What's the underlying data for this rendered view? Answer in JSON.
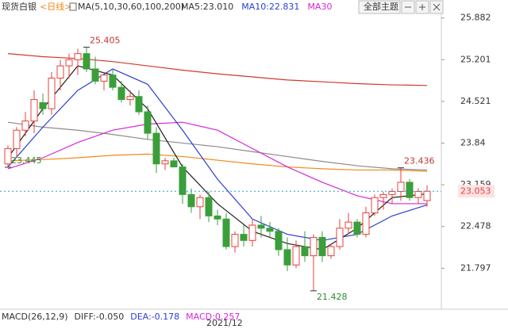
{
  "chart_data": {
    "type": "candlestick",
    "title": "现货白银",
    "period": "<日线>",
    "indicator": "MA(5,10,30,60,100,200)",
    "indicator_labels": [
      {
        "text": "MA5:23.010",
        "color": "#333333"
      },
      {
        "text": "MA10:22.831",
        "color": "#2b3fd1"
      },
      {
        "text": "MA30",
        "color": "#d627d6"
      }
    ],
    "buttons": [
      "全部主题"
    ],
    "x_label": "2021/12",
    "macd_labels": [
      {
        "text": "MACD(26,12,9)",
        "color": "#333333"
      },
      {
        "text": "DIFF:-0.050",
        "color": "#333333"
      },
      {
        "text": "DEA:-0.178",
        "color": "#2b3fd1"
      },
      {
        "text": "MACD:0.257",
        "color": "#d627d6"
      }
    ],
    "ylim": [
      21.128,
      26.02
    ],
    "yticks": [
      25.882,
      25.201,
      24.521,
      23.84,
      23.159,
      22.478,
      21.797
    ],
    "up_color": "#e8413c",
    "down_color": "#3a9f3a",
    "candles": {
      "open": [
        23.5,
        23.75,
        24.05,
        24.2,
        24.5,
        24.4,
        24.9,
        25.1,
        25.2,
        25.3,
        25.05,
        24.85,
        24.95,
        24.75,
        24.55,
        24.6,
        24.35,
        24.0,
        23.5,
        23.55,
        23.45,
        23.0,
        22.8,
        22.95,
        22.65,
        22.6,
        22.15,
        22.35,
        22.25,
        22.5,
        22.45,
        22.4,
        22.1,
        21.85,
        22.15,
        22.0,
        22.3,
        22.0,
        22.15,
        22.45,
        22.55,
        22.35,
        22.7,
        22.95,
        23.0,
        23.05,
        23.2,
        22.95,
        22.9
      ],
      "high": [
        23.8,
        24.1,
        24.35,
        24.7,
        24.65,
        25.0,
        25.2,
        25.3,
        25.38,
        25.405,
        25.25,
        25.0,
        25.05,
        24.85,
        24.7,
        24.7,
        24.45,
        24.1,
        23.6,
        23.6,
        23.5,
        23.1,
        23.0,
        23.05,
        22.75,
        22.7,
        22.4,
        22.5,
        22.6,
        22.65,
        22.55,
        22.45,
        22.3,
        22.25,
        22.4,
        22.35,
        22.4,
        22.2,
        22.6,
        22.7,
        22.6,
        22.8,
        23.0,
        23.05,
        23.1,
        23.436,
        23.25,
        23.1,
        23.15
      ],
      "low": [
        23.445,
        23.6,
        23.95,
        24.0,
        24.3,
        24.3,
        24.7,
        24.9,
        24.95,
        25.0,
        24.8,
        24.7,
        24.7,
        24.5,
        24.45,
        24.3,
        23.9,
        23.35,
        23.4,
        23.45,
        22.85,
        22.7,
        22.6,
        22.55,
        22.5,
        22.1,
        22.05,
        22.15,
        22.15,
        22.3,
        22.3,
        22.0,
        21.75,
        21.8,
        21.9,
        21.428,
        21.9,
        21.95,
        22.1,
        22.35,
        22.3,
        22.3,
        22.65,
        22.75,
        22.85,
        22.9,
        22.9,
        22.85,
        22.8
      ],
      "close": [
        23.75,
        24.05,
        24.2,
        24.55,
        24.4,
        24.9,
        25.1,
        25.2,
        25.3,
        25.05,
        24.85,
        24.95,
        24.75,
        24.55,
        24.6,
        24.35,
        24.0,
        23.5,
        23.55,
        23.45,
        23.0,
        22.8,
        22.95,
        22.65,
        22.6,
        22.15,
        22.35,
        22.25,
        22.5,
        22.45,
        22.4,
        22.1,
        21.85,
        22.15,
        22.0,
        22.3,
        22.0,
        22.15,
        22.45,
        22.55,
        22.35,
        22.7,
        22.95,
        23.0,
        23.05,
        23.2,
        22.95,
        23.05,
        23.053
      ]
    },
    "series": [
      {
        "name": "MA200",
        "color": "#d03a2e",
        "x": [
          0,
          4,
          8,
          12,
          16,
          20,
          24,
          28,
          32,
          36,
          40,
          44,
          48
        ],
        "values": [
          25.3,
          25.25,
          25.22,
          25.17,
          25.1,
          25.03,
          24.97,
          24.92,
          24.87,
          24.84,
          24.81,
          24.79,
          24.78
        ]
      },
      {
        "name": "MA100",
        "color": "#8c8c8c",
        "x": [
          0,
          4,
          8,
          12,
          16,
          20,
          24,
          28,
          32,
          36,
          40,
          44,
          48
        ],
        "values": [
          24.18,
          24.1,
          24.05,
          23.98,
          23.9,
          23.84,
          23.78,
          23.7,
          23.62,
          23.54,
          23.47,
          23.42,
          23.4
        ]
      },
      {
        "name": "MA60",
        "color": "#f08a1c",
        "x": [
          0,
          4,
          8,
          12,
          16,
          20,
          24,
          28,
          32,
          36,
          40,
          44,
          48
        ],
        "values": [
          23.55,
          23.57,
          23.6,
          23.64,
          23.66,
          23.62,
          23.56,
          23.5,
          23.45,
          23.42,
          23.4,
          23.4,
          23.38
        ]
      },
      {
        "name": "MA30",
        "color": "#d627d6",
        "x": [
          0,
          4,
          8,
          12,
          16,
          20,
          24,
          28,
          32,
          36,
          40,
          44,
          48
        ],
        "values": [
          23.42,
          23.6,
          23.85,
          24.05,
          24.15,
          24.18,
          24.05,
          23.75,
          23.45,
          23.2,
          22.98,
          22.85,
          22.85
        ]
      },
      {
        "name": "MA10",
        "color": "#2b3fd1",
        "x": [
          0,
          4,
          8,
          12,
          16,
          20,
          24,
          28,
          32,
          36,
          40,
          44,
          48
        ],
        "values": [
          23.45,
          24.1,
          24.7,
          25.05,
          24.8,
          24.05,
          23.25,
          22.6,
          22.35,
          22.25,
          22.35,
          22.65,
          22.831
        ]
      },
      {
        "name": "MA5",
        "color": "#222222",
        "x": [
          0,
          4,
          8,
          12,
          16,
          20,
          24,
          28,
          32,
          36,
          40,
          44,
          48
        ],
        "values": [
          23.6,
          24.4,
          25.1,
          24.95,
          24.4,
          23.45,
          22.85,
          22.4,
          22.2,
          22.1,
          22.45,
          22.95,
          23.01
        ]
      }
    ],
    "annotations": [
      {
        "index": 9,
        "value": 25.405,
        "label": "25.405",
        "color": "#c0392b"
      },
      {
        "index": 0,
        "value": 23.445,
        "label": "23.445",
        "color": "#2e8b2e"
      },
      {
        "index": 35,
        "value": 21.428,
        "label": "21.428",
        "color": "#2e8b2e"
      },
      {
        "index": 45,
        "value": 23.436,
        "label": "23.436",
        "color": "#c0392b"
      }
    ],
    "last_price": {
      "value": 23.053,
      "label": "23.053"
    }
  }
}
